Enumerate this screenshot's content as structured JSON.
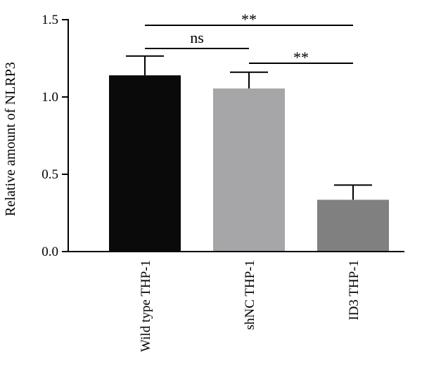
{
  "chart_data": {
    "type": "bar",
    "categories": [
      "Wild type THP-1",
      "shNC THP-1",
      "ID3 THP-1"
    ],
    "values": [
      1.14,
      1.055,
      0.335
    ],
    "errors": [
      0.125,
      0.105,
      0.095
    ],
    "bar_colors": [
      "#0a0a0a",
      "#a6a6a8",
      "#808080"
    ],
    "title": "",
    "xlabel": "",
    "ylabel": "Relative amount of NLRP3",
    "ylim": [
      0,
      1.5
    ],
    "yticks": [
      0.0,
      0.5,
      1.0,
      1.5
    ],
    "ytick_labels": [
      "0.0",
      "0.5",
      "1.0",
      "1.5"
    ],
    "grid": false,
    "significance": [
      {
        "from": 0,
        "to": 2,
        "label": "**"
      },
      {
        "from": 0,
        "to": 1,
        "label": "ns"
      },
      {
        "from": 1,
        "to": 2,
        "label": "**"
      }
    ]
  }
}
